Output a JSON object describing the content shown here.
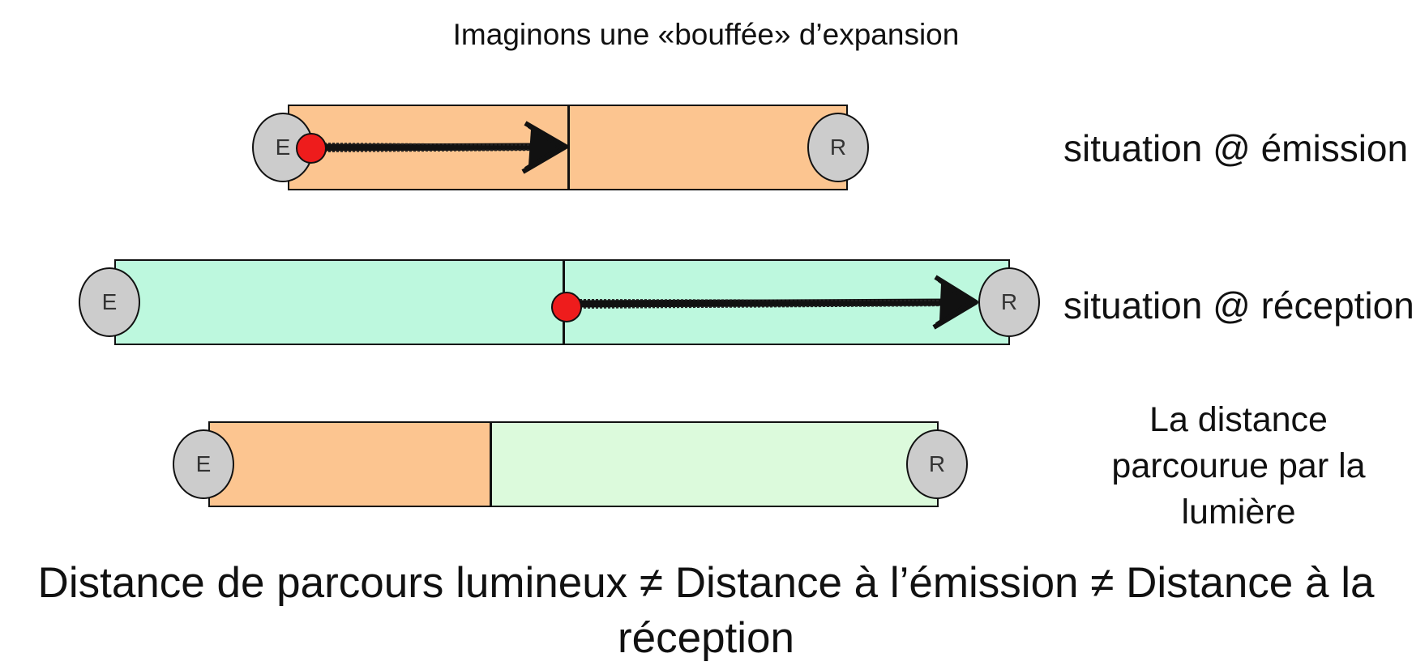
{
  "title": "Imaginons une «bouffée» d’expansion",
  "rows": [
    {
      "label": "situation @ émission",
      "emitter": "E",
      "receiver": "R",
      "segments": [
        "orange",
        "orange"
      ],
      "photon_position": "at emitter"
    },
    {
      "label": "situation @ réception",
      "emitter": "E",
      "receiver": "R",
      "segments": [
        "teal",
        "teal"
      ],
      "photon_position": "at receiver"
    },
    {
      "label_lines": [
        "La distance",
        "parcourue par la",
        "lumière"
      ],
      "emitter": "E",
      "receiver": "R",
      "segments": [
        "orange",
        "light-green"
      ]
    }
  ],
  "conclusion_lines": [
    "Distance de parcours lumineux ≠ Distance à l’émission ≠ Distance à la",
    "réception"
  ],
  "colors": {
    "orange": "#fcc590",
    "teal": "#bdf8de",
    "light_green": "#dcfadc",
    "node": "#cccccc",
    "photon": "#ee1c1c",
    "stroke": "#111111"
  }
}
